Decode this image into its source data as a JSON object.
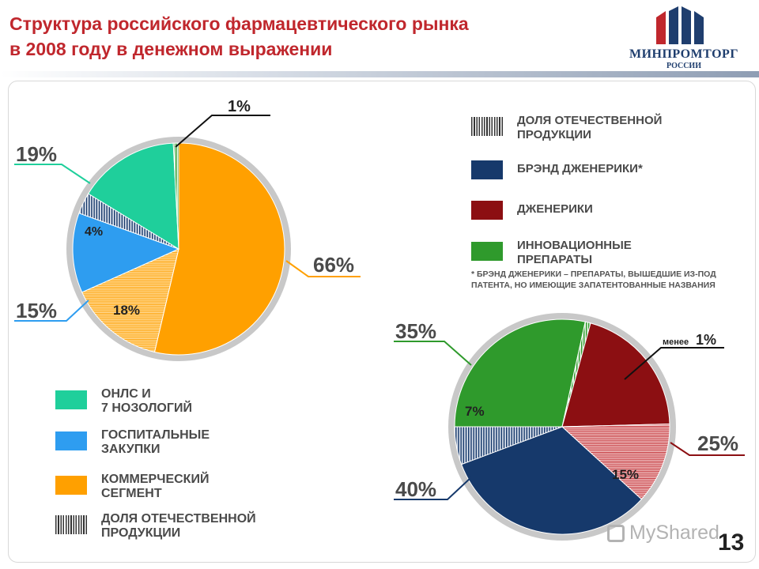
{
  "title": {
    "line1": "Структура российского фармацевтического рынка",
    "line2": "в 2008 году в денежном выражении"
  },
  "logo": {
    "name": "МИНПРОМТОРГ",
    "sub": "РОССИИ",
    "icon": "minpromtorg-logo-icon",
    "colors": [
      "#1f3e6e",
      "#c0272d"
    ]
  },
  "colors": {
    "title": "#c0272d",
    "teal": "#1fcf9b",
    "light_blue": "#2e9df0",
    "orange": "#ffa000",
    "dark_blue": "#16396b",
    "dark_red": "#8c0f12",
    "green": "#2f9a2c",
    "ring": "#c8c8c8"
  },
  "chart_data": [
    {
      "type": "pie",
      "slices": [
        {
          "label": "ОНЛС и 7 нозологий",
          "value": 19,
          "display": "19%"
        },
        {
          "label": "Доля отечественной продукции (ОНЛС)",
          "value": 4,
          "display": "4%"
        },
        {
          "label": "Госпитальные закупки",
          "value": 15,
          "display": "15%"
        },
        {
          "label": "Доля отечественной продукции (коммерческий сегмент)",
          "value": 18,
          "display": "18%"
        },
        {
          "label": "Коммерческий сегмент",
          "value": 66,
          "display": "66%"
        },
        {
          "label": "Доля отечественной продукции",
          "value": 1,
          "display": "1%"
        }
      ],
      "legend": [
        {
          "name": "ОНЛС и 7 нозологий",
          "line1": "ОНЛС и",
          "line2": "7 нозологий",
          "color": "#1fcf9b",
          "pattern": "solid"
        },
        {
          "name": "Госпитальные закупки",
          "line1": "Госпитальные",
          "line2": "закупки",
          "color": "#2e9df0",
          "pattern": "solid"
        },
        {
          "name": "Коммерческий сегмент",
          "line1": "Коммерческий",
          "line2": "сегмент",
          "color": "#ffa000",
          "pattern": "solid"
        },
        {
          "name": "Доля отечественной продукции",
          "line1": "Доля отечественной",
          "line2": "продукции",
          "color": "#333333",
          "pattern": "stripes"
        }
      ],
      "legend_position": "bottom"
    },
    {
      "type": "pie",
      "slices": [
        {
          "label": "Бренд дженерики",
          "value": 40,
          "display": "40%"
        },
        {
          "label": "Доля отечественной продукции (бренд дженерики)",
          "value": 7,
          "display": "7%"
        },
        {
          "label": "Инновационные препараты",
          "value": 35,
          "display": "35%"
        },
        {
          "label": "Доля отечественной продукции (инновационные)",
          "value": 1,
          "display": "менее 1%",
          "prefix": "менее",
          "number": "1%"
        },
        {
          "label": "Дженерики",
          "value": 25,
          "display": "25%"
        },
        {
          "label": "Доля отечественной продукции (дженерики)",
          "value": 15,
          "display": "15%"
        }
      ],
      "legend": [
        {
          "name": "Доля отечественной продукции",
          "line1": "Доля отечественной",
          "line2": "продукции",
          "color": "#333333",
          "pattern": "stripes"
        },
        {
          "name": "Брэнд дженерики*",
          "line1": "Брэнд дженерики*",
          "line2": "",
          "color": "#16396b",
          "pattern": "solid"
        },
        {
          "name": "Дженерики",
          "line1": "Дженерики",
          "line2": "",
          "color": "#8c0f12",
          "pattern": "solid"
        },
        {
          "name": "Инновационные препараты",
          "line1": "Инновационные",
          "line2": "препараты",
          "color": "#2f9a2c",
          "pattern": "solid"
        }
      ],
      "legend_position": "top-right",
      "footnote": "* Брэнд дженерики – препараты, вышедшие из-под патента, но имеющие запатентованные названия"
    }
  ],
  "watermark": "MyShared",
  "page_number": "13"
}
